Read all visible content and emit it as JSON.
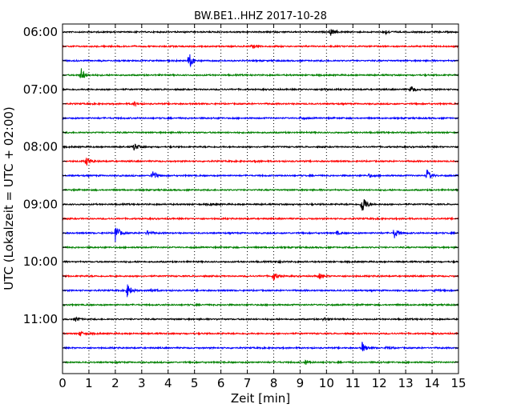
{
  "chart_data": {
    "type": "line",
    "title": "BW.BE1..HHZ 2017-10-28",
    "xlabel": "Zeit  [min]",
    "ylabel": "UTC (Lokalzeit = UTC + 02:00)",
    "xlim": [
      0,
      15
    ],
    "x_ticks": [
      "0",
      "1",
      "2",
      "3",
      "4",
      "5",
      "6",
      "7",
      "8",
      "9",
      "10",
      "11",
      "12",
      "13",
      "14",
      "15"
    ],
    "y_tick_labels": [
      "06:00",
      "07:00",
      "08:00",
      "09:00",
      "10:00",
      "11:00"
    ],
    "grid": "vertical dotted",
    "trace_colors": [
      "#000000",
      "#ff0000",
      "#0000ff",
      "#008000"
    ],
    "trace_start_times": [
      "06:00",
      "06:15",
      "06:30",
      "06:45",
      "07:00",
      "07:15",
      "07:30",
      "07:45",
      "08:00",
      "08:15",
      "08:30",
      "08:45",
      "09:00",
      "09:15",
      "09:30",
      "09:45",
      "10:00",
      "10:15",
      "10:30",
      "10:45",
      "11:00",
      "11:15",
      "11:30",
      "11:45"
    ],
    "events": [
      {
        "trace": "06:00",
        "minute": 10.15,
        "amplitude": 0.5
      },
      {
        "trace": "06:00",
        "minute": 12.2,
        "amplitude": 0.3
      },
      {
        "trace": "06:15",
        "minute": 7.2,
        "amplitude": 0.25
      },
      {
        "trace": "06:30",
        "minute": 4.8,
        "amplitude": 1.0
      },
      {
        "trace": "06:45",
        "minute": 0.7,
        "amplitude": 0.9
      },
      {
        "trace": "07:00",
        "minute": 13.2,
        "amplitude": 0.5
      },
      {
        "trace": "07:00",
        "minute": 9.8,
        "amplitude": 0.15
      },
      {
        "trace": "07:15",
        "minute": 2.7,
        "amplitude": 0.3
      },
      {
        "trace": "07:30",
        "minute": 9.0,
        "amplitude": 0.15
      },
      {
        "trace": "08:00",
        "minute": 2.7,
        "amplitude": 0.55
      },
      {
        "trace": "08:15",
        "minute": 0.9,
        "amplitude": 0.6
      },
      {
        "trace": "08:15",
        "minute": 7.3,
        "amplitude": 0.15
      },
      {
        "trace": "08:30",
        "minute": 3.4,
        "amplitude": 0.8
      },
      {
        "trace": "08:30",
        "minute": 13.8,
        "amplitude": 0.8
      },
      {
        "trace": "08:30",
        "minute": 11.6,
        "amplitude": 0.2
      },
      {
        "trace": "09:00",
        "minute": 11.35,
        "amplitude": 1.4
      },
      {
        "trace": "09:00",
        "minute": 5.6,
        "amplitude": 0.15
      },
      {
        "trace": "09:30",
        "minute": 2.0,
        "amplitude": 1.2
      },
      {
        "trace": "09:30",
        "minute": 12.55,
        "amplitude": 0.8
      },
      {
        "trace": "09:30",
        "minute": 3.2,
        "amplitude": 0.3
      },
      {
        "trace": "09:30",
        "minute": 10.4,
        "amplitude": 0.2
      },
      {
        "trace": "10:00",
        "minute": 8.1,
        "amplitude": 0.2
      },
      {
        "trace": "10:15",
        "minute": 8.0,
        "amplitude": 0.55
      },
      {
        "trace": "10:15",
        "minute": 9.7,
        "amplitude": 0.4
      },
      {
        "trace": "10:30",
        "minute": 2.45,
        "amplitude": 0.85
      },
      {
        "trace": "10:30",
        "minute": 3.35,
        "amplitude": 0.3
      },
      {
        "trace": "10:30",
        "minute": 14.1,
        "amplitude": 0.2
      },
      {
        "trace": "11:00",
        "minute": 0.5,
        "amplitude": 0.25
      },
      {
        "trace": "11:00",
        "minute": 9.9,
        "amplitude": 0.25
      },
      {
        "trace": "11:15",
        "minute": 0.65,
        "amplitude": 0.35
      },
      {
        "trace": "11:30",
        "minute": 11.35,
        "amplitude": 0.7
      },
      {
        "trace": "11:30",
        "minute": 12.3,
        "amplitude": 0.3
      },
      {
        "trace": "11:45",
        "minute": 9.2,
        "amplitude": 0.3
      }
    ]
  }
}
